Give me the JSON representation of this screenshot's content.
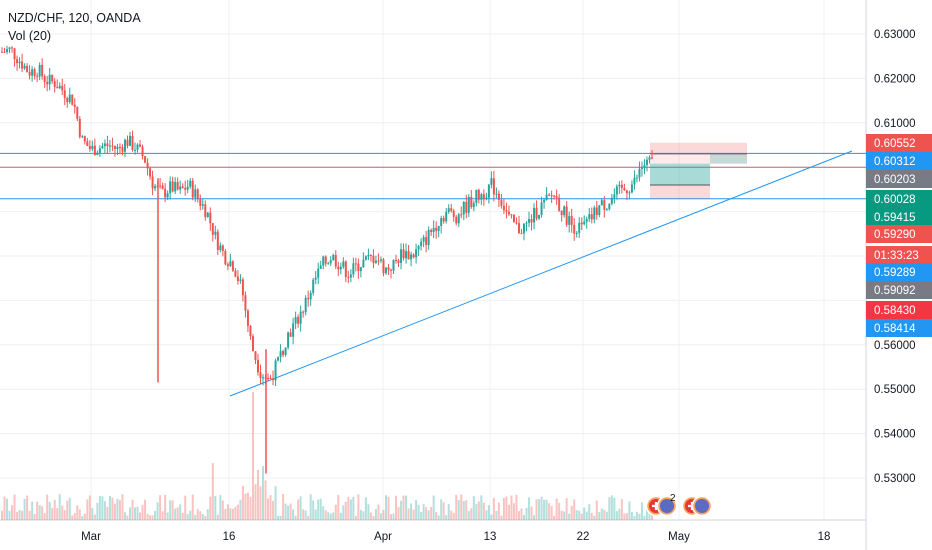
{
  "legend": {
    "symbol_line": "NZD/CHF, 120, OANDA",
    "volume_line": "Vol (20)"
  },
  "colors": {
    "up": "#26a69a",
    "down": "#ef5350",
    "hline": "#2196f3",
    "grid": "#eef0f3",
    "tag_red": "#ef5350",
    "tag_blue": "#2196f3",
    "tag_grey": "#787b86",
    "tag_green": "#089981",
    "tag_darkred": "#f23645"
  },
  "chart_data": {
    "type": "candlestick",
    "title": "NZD/CHF, 120, OANDA",
    "indicator": "Vol (20)",
    "ylim": [
      0.5225,
      0.6375
    ],
    "y_ticks": [
      "0.63000",
      "0.62000",
      "0.61000",
      "0.56000",
      "0.55000",
      "0.54000",
      "0.53000"
    ],
    "x_ticks": [
      "Mar",
      "16",
      "Apr",
      "13",
      "22",
      "May",
      "18"
    ],
    "price_tags": [
      {
        "label": "0.60552",
        "value": 0.60552,
        "color": "red"
      },
      {
        "label": "0.60312",
        "value": 0.60312,
        "color": "blue"
      },
      {
        "label": "0.60203",
        "value": 0.60203,
        "color": "grey"
      },
      {
        "label": "0.60028",
        "value": 0.60028,
        "color": "green"
      },
      {
        "label": "0.59415",
        "value": 0.59415,
        "color": "green"
      },
      {
        "label": "0.59290",
        "value": 0.5929,
        "color": "red"
      },
      {
        "label": "01:33:23",
        "value": 0.5903,
        "color": "red"
      },
      {
        "label": "0.59289",
        "value": 0.59289,
        "color": "blue"
      },
      {
        "label": "0.59092",
        "value": 0.59092,
        "color": "grey"
      },
      {
        "label": "0.58430",
        "value": 0.5843,
        "color": "darkred"
      },
      {
        "label": "0.58414",
        "value": 0.58414,
        "color": "blue"
      }
    ],
    "horizontal_lines": [
      0.6031,
      0.6,
      0.5929
    ],
    "trendline": {
      "from": [
        "Mar 17",
        0.5485
      ],
      "to": [
        "May 20",
        0.6031
      ]
    },
    "position_box": {
      "entry": 0.6,
      "stop": 0.6055,
      "target": 0.5929
    },
    "price_path": [
      [
        0.626,
        0.6265,
        0.624,
        0.6215,
        0.622,
        0.6195,
        0.619,
        0.617,
        0.615,
        0.606,
        0.604,
        0.6045,
        0.605,
        0.604,
        0.606,
        0.6045,
        0.602,
        0.596,
        0.594,
        0.5955,
        0.5945,
        0.596,
        0.593,
        0.59,
        0.584,
        0.58,
        0.578,
        0.572,
        0.56,
        0.554,
        0.552,
        0.556,
        0.562,
        0.565,
        0.569,
        0.574,
        0.578,
        0.58,
        0.578,
        0.576,
        0.578,
        0.579,
        0.58,
        0.577,
        0.578,
        0.581,
        0.58,
        0.582,
        0.585,
        0.588,
        0.59,
        0.589,
        0.591,
        0.593,
        0.594,
        0.596,
        0.593,
        0.588,
        0.586,
        0.587,
        0.59,
        0.592,
        0.594,
        0.59,
        0.587,
        0.586,
        0.588,
        0.591,
        0.592,
        0.594,
        0.595,
        0.5965,
        0.6005,
        0.601
      ]
    ],
    "volume_note": "relative volume bars at bottom"
  },
  "events": {
    "badge_count": "2"
  }
}
